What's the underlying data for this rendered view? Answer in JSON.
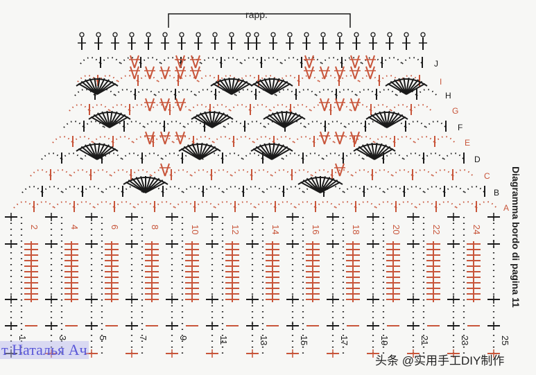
{
  "title": "Diagramma bordo di pagina 11",
  "repeat_label": "rapp.",
  "row_labels": [
    "A",
    "B",
    "C",
    "D",
    "E",
    "F",
    "G",
    "H",
    "I",
    "J"
  ],
  "column_numbers_even": [
    "2",
    "4",
    "6",
    "8",
    "10",
    "12",
    "14",
    "16",
    "18",
    "20",
    "22",
    "24"
  ],
  "column_numbers_odd": [
    "1",
    "3",
    "5",
    "7",
    "9",
    "11",
    "13",
    "15",
    "17",
    "19",
    "21",
    "23",
    "25"
  ],
  "watermark": "т Наталья Ач",
  "credit": "头条 @实用手工DIY制作",
  "colors": {
    "red": "#c8553a",
    "black": "#1a1a1a",
    "watermark": "#5a58d8"
  }
}
